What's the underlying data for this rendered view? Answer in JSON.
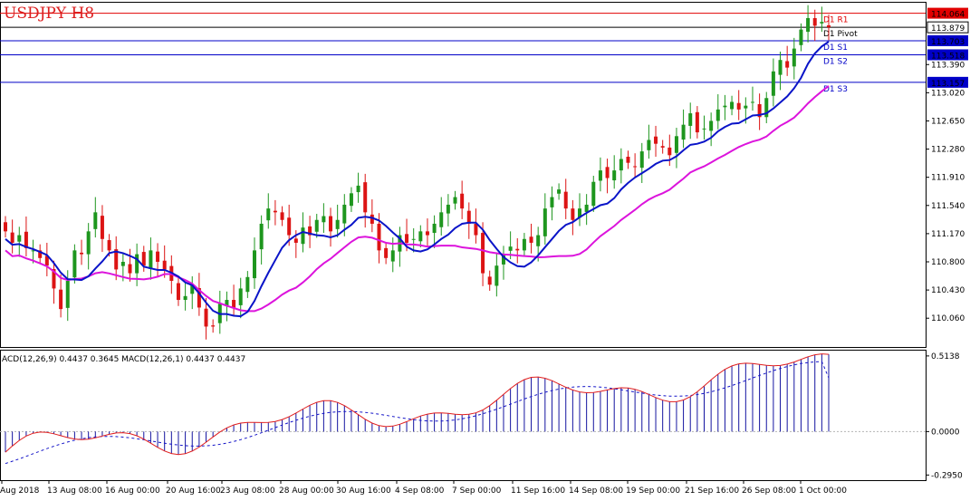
{
  "title": "USDJPY H8",
  "chart_data": {
    "type": "candlestick",
    "symbol": "USDJPY",
    "timeframe": "H8",
    "price_axis": {
      "range": [
        109.67,
        114.19
      ],
      "ticks": [
        114.064,
        113.879,
        113.703,
        113.518,
        113.39,
        113.157,
        113.02,
        112.65,
        112.28,
        111.91,
        111.54,
        111.17,
        110.8,
        110.43,
        110.06
      ]
    },
    "levels": [
      {
        "name": "D1 R1",
        "value": 114.064,
        "color": "#e10000"
      },
      {
        "name": "D1 Pivot",
        "value": 113.879,
        "color": "#000000"
      },
      {
        "name": "D1 S1",
        "value": 113.703,
        "color": "#0000c8"
      },
      {
        "name": "D1 S2",
        "value": 113.518,
        "color": "#0000c8"
      },
      {
        "name": "D1 S3",
        "value": 113.157,
        "color": "#0000c8"
      }
    ],
    "candles_close": [
      111.2,
      111.05,
      111.15,
      110.98,
      110.95,
      110.85,
      110.75,
      110.45,
      110.18,
      110.55,
      110.95,
      110.9,
      111.2,
      111.45,
      111.1,
      110.95,
      110.7,
      110.8,
      110.65,
      110.9,
      110.75,
      110.95,
      110.8,
      110.7,
      110.55,
      110.3,
      110.35,
      110.5,
      110.2,
      109.95,
      109.95,
      110.25,
      110.3,
      110.2,
      110.45,
      110.6,
      110.95,
      111.3,
      111.5,
      111.45,
      111.35,
      111.15,
      111.05,
      111.25,
      111.15,
      111.35,
      111.4,
      111.2,
      111.35,
      111.55,
      111.7,
      111.8,
      111.45,
      111.3,
      110.95,
      110.85,
      110.95,
      111.15,
      111.05,
      111.1,
      111.2,
      111.15,
      111.3,
      111.45,
      111.55,
      111.65,
      111.5,
      111.3,
      111.15,
      110.65,
      110.5,
      110.75,
      110.9,
      111.0,
      110.95,
      111.1,
      111.05,
      111.15,
      111.5,
      111.65,
      111.75,
      111.5,
      111.35,
      111.5,
      111.55,
      111.85,
      112.0,
      111.9,
      112.0,
      112.15,
      112.1,
      112.05,
      112.25,
      112.4,
      112.35,
      112.3,
      112.2,
      112.45,
      112.6,
      112.75,
      112.5,
      112.55,
      112.65,
      112.8,
      112.85,
      112.9,
      112.8,
      112.85,
      112.9,
      112.7,
      112.95,
      113.3,
      113.45,
      113.35,
      113.6,
      113.85,
      114.0,
      113.9,
      113.95,
      113.88
    ],
    "candles_note": "approximate closing prices per 8-hour bar read from the price axis",
    "ma_blue": {
      "from": 111.2,
      "to": 113.52,
      "color": "#0a14c8"
    },
    "ma_magenta": {
      "from": 111.42,
      "to": 113.14,
      "color": "#dc14dc"
    },
    "x_ticks": [
      "Aug 2018",
      "13 Aug 08:00",
      "16 Aug 00:00",
      "20 Aug 16:00",
      "23 Aug 08:00",
      "28 Aug 00:00",
      "30 Aug 16:00",
      "4 Sep 08:00",
      "7 Sep 00:00",
      "11 Sep 16:00",
      "14 Sep 08:00",
      "19 Sep 00:00",
      "21 Sep 16:00",
      "26 Sep 08:00",
      "1 Oct 00:00"
    ],
    "macd": {
      "label": "ACD(12,26,9) 0.4437 0.3645 MACD(12,26,1) 0.4437 0.4437",
      "axis_ticks": [
        0.5138,
        0.0,
        -0.295
      ],
      "range": [
        -0.33,
        0.55
      ],
      "histogram_start": -0.14,
      "histogram_end": 0.4437,
      "signal_end": 0.3645,
      "signal_color": "#1414c8",
      "line_color": "#e11e1e",
      "bar_color": "#1414a0"
    }
  }
}
